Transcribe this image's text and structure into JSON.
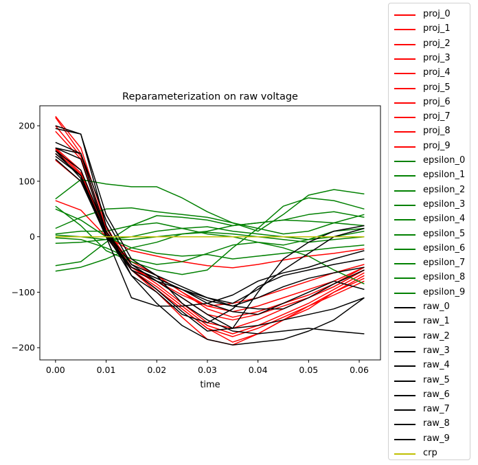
{
  "chart_data": {
    "type": "line",
    "title": "Reparameterization on raw voltage",
    "xlabel": "time",
    "ylabel": "",
    "xlim": [
      -0.0031,
      0.0642
    ],
    "ylim": [
      -222,
      236
    ],
    "xticks": [
      0.0,
      0.01,
      0.02,
      0.03,
      0.04,
      0.05,
      0.06
    ],
    "xtick_labels": [
      "0.00",
      "0.01",
      "0.02",
      "0.03",
      "0.04",
      "0.05",
      "0.06"
    ],
    "yticks": [
      -200,
      -100,
      0,
      100,
      200
    ],
    "ytick_labels": [
      "−200",
      "−100",
      "0",
      "100",
      "200"
    ],
    "grid": false,
    "legend_position": "outside-right",
    "colors": {
      "proj": "#ff0000",
      "epsilon": "#008000",
      "raw": "#000000",
      "crp": "#bfbf00"
    },
    "x": [
      0.0,
      0.005,
      0.01,
      0.015,
      0.02,
      0.025,
      0.03,
      0.035,
      0.04,
      0.045,
      0.05,
      0.055,
      0.061
    ],
    "series": [
      {
        "name": "proj_0",
        "group": "proj",
        "values": [
          217,
          160,
          20,
          -60,
          -95,
          -130,
          -165,
          -190,
          -175,
          -150,
          -130,
          -100,
          -75
        ]
      },
      {
        "name": "proj_1",
        "group": "proj",
        "values": [
          215,
          150,
          10,
          -55,
          -80,
          -110,
          -140,
          -150,
          -140,
          -125,
          -110,
          -90,
          -60
        ]
      },
      {
        "name": "proj_2",
        "group": "proj",
        "values": [
          200,
          145,
          15,
          -50,
          -70,
          -100,
          -130,
          -145,
          -135,
          -120,
          -105,
          -85,
          -55
        ]
      },
      {
        "name": "proj_3",
        "group": "proj",
        "values": [
          190,
          140,
          5,
          -60,
          -90,
          -125,
          -160,
          -175,
          -160,
          -140,
          -120,
          -95,
          -65
        ]
      },
      {
        "name": "proj_4",
        "group": "proj",
        "values": [
          160,
          120,
          10,
          -55,
          -85,
          -120,
          -155,
          -165,
          -150,
          -130,
          -110,
          -90,
          -60
        ]
      },
      {
        "name": "proj_5",
        "group": "proj",
        "values": [
          158,
          115,
          8,
          -60,
          -100,
          -145,
          -185,
          -195,
          -175,
          -150,
          -125,
          -100,
          -70
        ]
      },
      {
        "name": "proj_6",
        "group": "proj",
        "values": [
          155,
          112,
          5,
          -55,
          -80,
          -105,
          -125,
          -120,
          -110,
          -95,
          -80,
          -65,
          -50
        ]
      },
      {
        "name": "proj_7",
        "group": "proj",
        "values": [
          150,
          110,
          0,
          -60,
          -95,
          -130,
          -165,
          -180,
          -165,
          -145,
          -125,
          -105,
          -80
        ]
      },
      {
        "name": "proj_8",
        "group": "proj",
        "values": [
          138,
          100,
          5,
          -45,
          -70,
          -100,
          -125,
          -135,
          -125,
          -110,
          -95,
          -80,
          -55
        ]
      },
      {
        "name": "proj_9",
        "group": "proj",
        "values": [
          65,
          48,
          0,
          -25,
          -35,
          -45,
          -52,
          -56,
          -50,
          -42,
          -35,
          -30,
          -22
        ]
      },
      {
        "name": "epsilon_0",
        "group": "epsilon",
        "values": [
          68,
          103,
          95,
          90,
          90,
          70,
          45,
          25,
          10,
          40,
          75,
          85,
          77
        ]
      },
      {
        "name": "epsilon_1",
        "group": "epsilon",
        "values": [
          55,
          20,
          -25,
          -45,
          -60,
          -68,
          -60,
          -20,
          15,
          55,
          70,
          65,
          50
        ]
      },
      {
        "name": "epsilon_2",
        "group": "epsilon",
        "values": [
          15,
          35,
          50,
          52,
          45,
          40,
          35,
          25,
          15,
          5,
          10,
          25,
          40
        ]
      },
      {
        "name": "epsilon_3",
        "group": "epsilon",
        "values": [
          -52,
          -45,
          -10,
          20,
          38,
          35,
          30,
          20,
          25,
          30,
          40,
          45,
          35
        ]
      },
      {
        "name": "epsilon_4",
        "group": "epsilon",
        "values": [
          -62,
          -55,
          -40,
          -20,
          -10,
          5,
          10,
          20,
          25,
          30,
          28,
          25,
          20
        ]
      },
      {
        "name": "epsilon_5",
        "group": "epsilon",
        "values": [
          5,
          10,
          10,
          20,
          25,
          15,
          5,
          0,
          -10,
          -15,
          -5,
          10,
          15
        ]
      },
      {
        "name": "epsilon_6",
        "group": "epsilon",
        "values": [
          -12,
          -10,
          -5,
          0,
          10,
          15,
          18,
          10,
          5,
          0,
          -5,
          0,
          10
        ]
      },
      {
        "name": "epsilon_7",
        "group": "epsilon",
        "values": [
          50,
          30,
          0,
          -20,
          -30,
          -35,
          -32,
          -40,
          -35,
          -30,
          -25,
          -20,
          -15
        ]
      },
      {
        "name": "epsilon_8",
        "group": "epsilon",
        "values": [
          -2,
          -5,
          -20,
          -40,
          -50,
          -45,
          -30,
          -15,
          -10,
          -20,
          -35,
          -60,
          -85
        ]
      },
      {
        "name": "epsilon_9",
        "group": "epsilon",
        "values": [
          3,
          0,
          -5,
          -5,
          0,
          5,
          8,
          5,
          0,
          -5,
          -10,
          -5,
          0
        ]
      },
      {
        "name": "raw_0",
        "group": "raw",
        "values": [
          195,
          185,
          40,
          -40,
          -70,
          -120,
          -150,
          -170,
          -175,
          -170,
          -165,
          -170,
          -175
        ]
      },
      {
        "name": "raw_1",
        "group": "raw",
        "values": [
          200,
          185,
          20,
          -70,
          -120,
          -160,
          -185,
          -195,
          -190,
          -185,
          -170,
          -150,
          -110
        ]
      },
      {
        "name": "raw_2",
        "group": "raw",
        "values": [
          170,
          150,
          30,
          -50,
          -80,
          -95,
          -120,
          -135,
          -140,
          -120,
          -100,
          -80,
          -95
        ]
      },
      {
        "name": "raw_3",
        "group": "raw",
        "values": [
          160,
          150,
          10,
          -60,
          -95,
          -135,
          -170,
          -165,
          -100,
          -40,
          -10,
          10,
          20
        ]
      },
      {
        "name": "raw_4",
        "group": "raw",
        "values": [
          160,
          140,
          5,
          -70,
          -100,
          -140,
          -155,
          -130,
          -90,
          -70,
          -60,
          -50,
          -40
        ]
      },
      {
        "name": "raw_5",
        "group": "raw",
        "values": [
          150,
          110,
          0,
          -55,
          -75,
          -95,
          -110,
          -120,
          -95,
          -60,
          -30,
          0,
          15
        ]
      },
      {
        "name": "raw_6",
        "group": "raw",
        "values": [
          140,
          100,
          0,
          -110,
          -125,
          -125,
          -120,
          -105,
          -80,
          -65,
          -55,
          -40,
          -25
        ]
      },
      {
        "name": "raw_7",
        "group": "raw",
        "values": [
          155,
          105,
          0,
          -60,
          -80,
          -110,
          -140,
          -165,
          -160,
          -150,
          -140,
          -130,
          -110
        ]
      },
      {
        "name": "raw_8",
        "group": "raw",
        "values": [
          155,
          120,
          10,
          -50,
          -70,
          -90,
          -110,
          -125,
          -130,
          -130,
          -110,
          -85,
          -60
        ]
      },
      {
        "name": "raw_9",
        "group": "raw",
        "values": [
          145,
          110,
          5,
          -55,
          -75,
          -95,
          -115,
          -125,
          -110,
          -90,
          -75,
          -65,
          -55
        ]
      },
      {
        "name": "crp",
        "group": "crp",
        "values": [
          0,
          0,
          0,
          0,
          0,
          0,
          0,
          0,
          0,
          0,
          0,
          0,
          0
        ]
      }
    ]
  }
}
